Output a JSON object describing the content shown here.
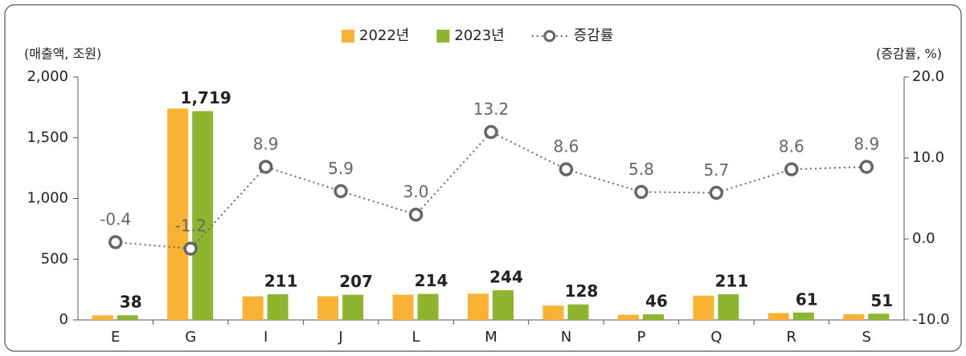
{
  "chart_data": {
    "type": "bar-line",
    "y_label": "(매출액, 조원)",
    "y2_label": "(증감률, %)",
    "categories": [
      "E",
      "G",
      "I",
      "J",
      "L",
      "M",
      "N",
      "P",
      "Q",
      "R",
      "S"
    ],
    "series": [
      {
        "name": "2022년",
        "color": "#f9b234",
        "values": [
          38,
          1740,
          194,
          195,
          208,
          216,
          118,
          43,
          200,
          56,
          47
        ]
      },
      {
        "name": "2023년",
        "color": "#8db52e",
        "values": [
          38,
          1719,
          211,
          207,
          214,
          244,
          128,
          46,
          211,
          61,
          51
        ],
        "value_labels": [
          "38",
          "1,719",
          "211",
          "207",
          "214",
          "244",
          "128",
          "46",
          "211",
          "61",
          "51"
        ]
      },
      {
        "name": "증감률",
        "color": "#666666",
        "axis": "y2",
        "values": [
          -0.4,
          -1.2,
          8.9,
          5.9,
          3.0,
          13.2,
          8.6,
          5.8,
          5.7,
          8.6,
          8.9
        ],
        "value_labels": [
          "-0.4",
          "-1.2",
          "8.9",
          "5.9",
          "3.0",
          "13.2",
          "8.6",
          "5.8",
          "5.7",
          "8.6",
          "8.9"
        ]
      }
    ],
    "ylim": [
      0,
      2000
    ],
    "yticks": [
      0,
      500,
      {
        "value": 1000,
        "label": "1,000"
      },
      {
        "value": 1500,
        "label": "1,500"
      },
      {
        "value": 2000,
        "label": "2,000"
      }
    ],
    "y2lim": [
      -10,
      20
    ],
    "y2ticks": [
      {
        "value": -10,
        "label": "-10.0"
      },
      {
        "value": 0,
        "label": "0.0"
      },
      {
        "value": 10,
        "label": "10.0"
      },
      {
        "value": 20,
        "label": "20.0"
      }
    ]
  }
}
